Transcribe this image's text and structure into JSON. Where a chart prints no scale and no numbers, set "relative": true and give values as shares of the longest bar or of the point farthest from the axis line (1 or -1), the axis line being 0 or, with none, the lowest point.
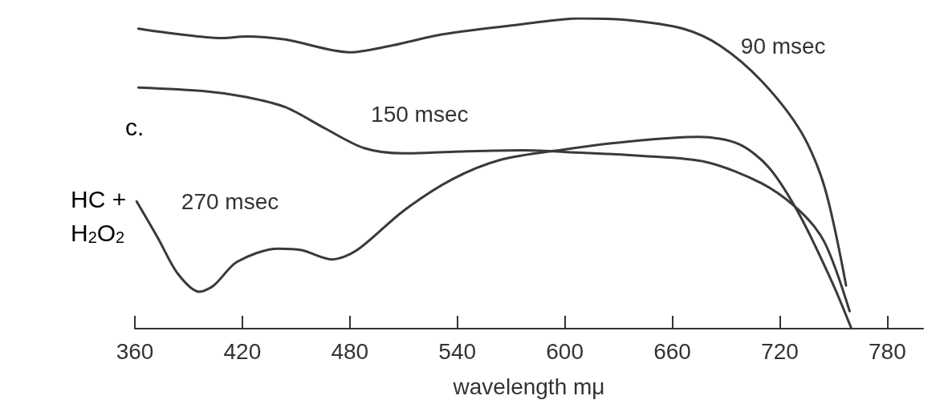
{
  "chart_data": {
    "type": "line",
    "xlabel": "wavelength mμ",
    "relative": true,
    "xlim": [
      360,
      800
    ],
    "xticks": [
      360,
      420,
      480,
      540,
      600,
      660,
      720,
      780
    ],
    "grid": false,
    "legend": false,
    "marker": "none",
    "line_style": "solid",
    "annotations": [
      "c.",
      "HC +",
      "H$_{2}$O$_{2}$"
    ],
    "series": [
      {
        "name": "90 msec",
        "color": "#3a3a3a",
        "x": [
          362,
          409,
          422,
          444,
          480,
          502,
          532,
          577,
          608,
          635,
          666,
          687,
          710,
          732,
          745,
          757
        ],
        "values": [
          0.967,
          0.937,
          0.942,
          0.932,
          0.891,
          0.911,
          0.949,
          0.982,
          1.0,
          0.995,
          0.967,
          0.911,
          0.797,
          0.633,
          0.456,
          0.139
        ]
      },
      {
        "name": "150 msec",
        "color": "#3a3a3a",
        "x": [
          362,
          400,
          422,
          444,
          466,
          488,
          510,
          537,
          577,
          599,
          643,
          679,
          710,
          731,
          745,
          759
        ],
        "values": [
          0.777,
          0.765,
          0.747,
          0.714,
          0.646,
          0.582,
          0.565,
          0.57,
          0.575,
          0.57,
          0.557,
          0.537,
          0.468,
          0.38,
          0.278,
          0.056
        ]
      },
      {
        "name": "270 msec",
        "color": "#3a3a3a",
        "x": [
          361,
          373,
          384,
          396,
          404,
          417,
          440,
          453,
          470,
          484,
          510,
          537,
          564,
          599,
          635,
          675,
          697,
          714,
          731,
          749,
          760
        ],
        "values": [
          0.41,
          0.291,
          0.177,
          0.119,
          0.139,
          0.215,
          0.258,
          0.253,
          0.223,
          0.253,
          0.38,
          0.481,
          0.544,
          0.577,
          0.603,
          0.618,
          0.595,
          0.519,
          0.367,
          0.152,
          0.0
        ]
      }
    ]
  }
}
